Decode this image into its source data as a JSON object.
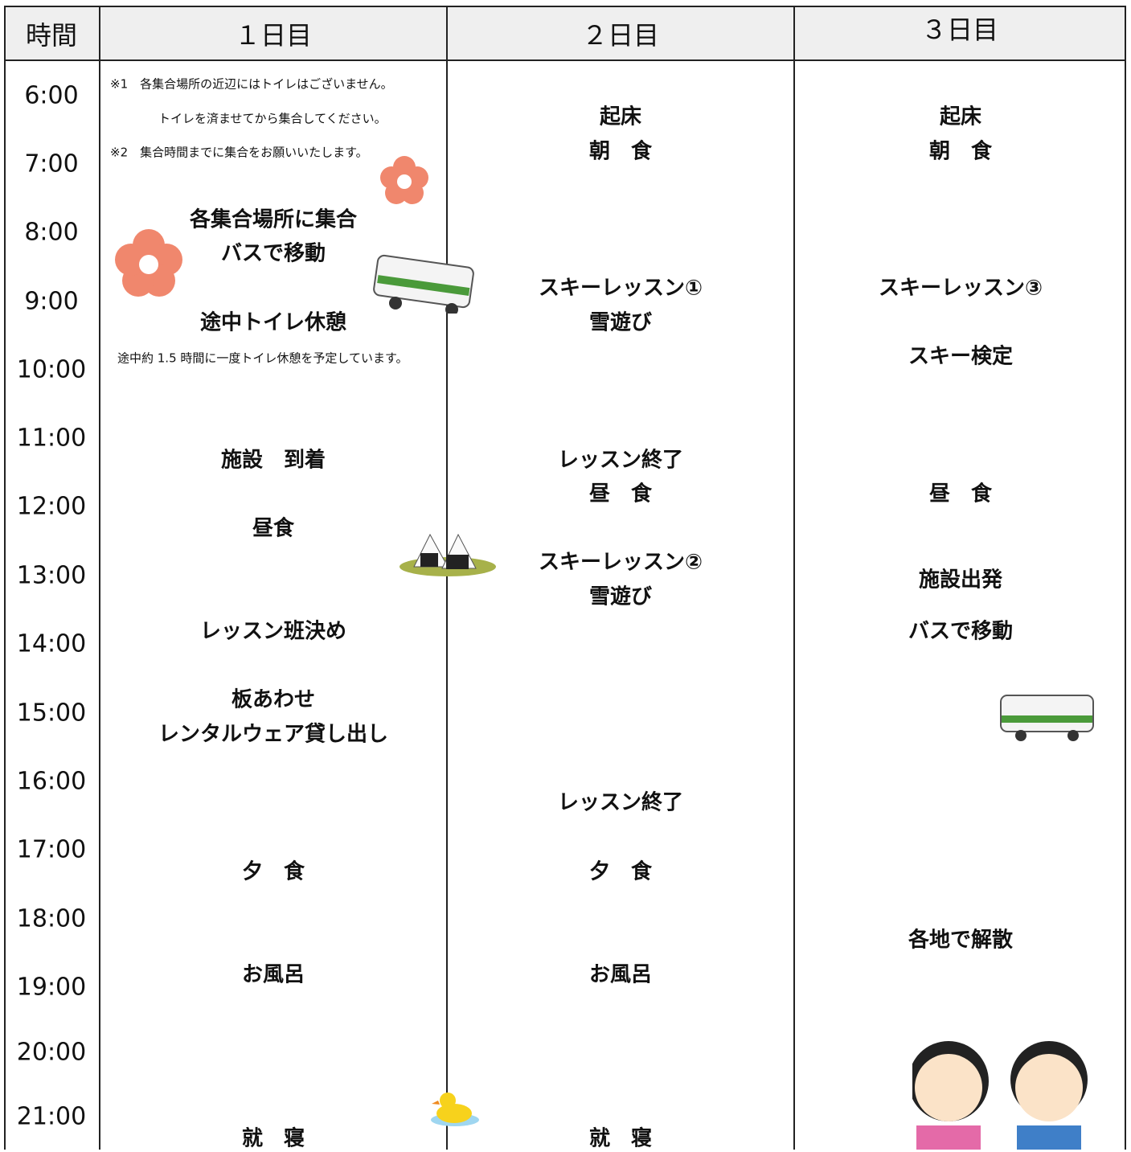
{
  "header": {
    "time": "時間",
    "days": [
      "１日目",
      "２日目",
      "３日目"
    ]
  },
  "times": [
    "6:00",
    "7:00",
    "8:00",
    "9:00",
    "10:00",
    "11:00",
    "12:00",
    "13:00",
    "14:00",
    "15:00",
    "16:00",
    "17:00",
    "18:00",
    "19:00",
    "20:00",
    "21:00"
  ],
  "days": [
    {
      "notes": [
        "※1　各集合場所の近辺にはトイレはございません。",
        "トイレを済ませてから集合してください。",
        "※2　集合時間までに集合をお願いいたします。",
        "途中約 1.5 時間に一度トイレ休憩を予定しています。"
      ],
      "items": [
        "各集合場所に集合",
        "バスで移動",
        "途中トイレ休憩",
        "施設　到着",
        "昼食",
        "レッスン班決め",
        "板あわせ",
        "レンタルウェア貸し出し",
        "夕　食",
        "お風呂",
        "就　寝"
      ]
    },
    {
      "items": [
        "起床",
        "朝　食",
        "スキーレッスン①",
        "雪遊び",
        "レッスン終了",
        "昼　食",
        "スキーレッスン②",
        "雪遊び",
        "レッスン終了",
        "夕　食",
        "お風呂",
        "就　寝"
      ]
    },
    {
      "items": [
        "起床",
        "朝　食",
        "スキーレッスン③",
        "スキー検定",
        "昼　食",
        "施設出発",
        "バスで移動",
        "各地で解散"
      ]
    }
  ]
}
